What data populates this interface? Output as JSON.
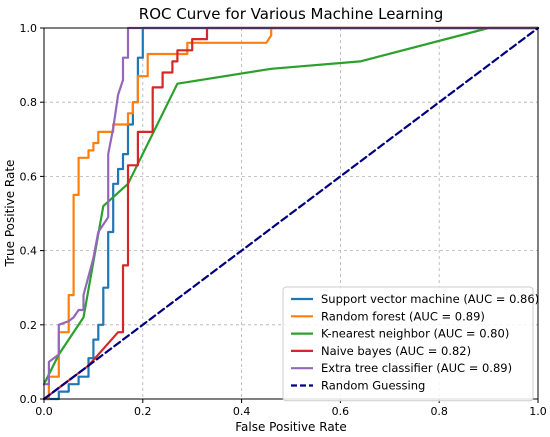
{
  "chart_data": {
    "type": "line",
    "title": "ROC Curve for Various Machine Learning",
    "xlabel": "False Positive Rate",
    "ylabel": "True Positive Rate",
    "xlim": [
      0.0,
      1.0
    ],
    "ylim": [
      0.0,
      1.0
    ],
    "xticks": [
      "0.0",
      "0.2",
      "0.4",
      "0.6",
      "0.8",
      "1.0"
    ],
    "yticks": [
      "0.0",
      "0.2",
      "0.4",
      "0.6",
      "0.8",
      "1.0"
    ],
    "grid": true,
    "legend_position": "lower-right",
    "series": [
      {
        "name": "Support vector machine (AUC = 0.86)",
        "color": "#1f77b4",
        "dashed": false,
        "points": [
          [
            0,
            0
          ],
          [
            0.03,
            0
          ],
          [
            0.03,
            0.02
          ],
          [
            0.05,
            0.02
          ],
          [
            0.05,
            0.04
          ],
          [
            0.07,
            0.04
          ],
          [
            0.07,
            0.06
          ],
          [
            0.09,
            0.06
          ],
          [
            0.09,
            0.11
          ],
          [
            0.1,
            0.11
          ],
          [
            0.1,
            0.16
          ],
          [
            0.11,
            0.16
          ],
          [
            0.11,
            0.2
          ],
          [
            0.12,
            0.2
          ],
          [
            0.12,
            0.3
          ],
          [
            0.13,
            0.3
          ],
          [
            0.13,
            0.45
          ],
          [
            0.14,
            0.45
          ],
          [
            0.14,
            0.58
          ],
          [
            0.15,
            0.58
          ],
          [
            0.15,
            0.62
          ],
          [
            0.16,
            0.62
          ],
          [
            0.16,
            0.66
          ],
          [
            0.17,
            0.66
          ],
          [
            0.17,
            0.74
          ],
          [
            0.18,
            0.74
          ],
          [
            0.18,
            0.8
          ],
          [
            0.19,
            0.8
          ],
          [
            0.19,
            0.92
          ],
          [
            0.2,
            0.92
          ],
          [
            0.2,
            1.0
          ],
          [
            1.0,
            1.0
          ]
        ]
      },
      {
        "name": "Random forest (AUC = 0.89)",
        "color": "#ff7f0e",
        "dashed": false,
        "points": [
          [
            0,
            0
          ],
          [
            0.01,
            0
          ],
          [
            0.01,
            0.06
          ],
          [
            0.03,
            0.06
          ],
          [
            0.03,
            0.18
          ],
          [
            0.05,
            0.18
          ],
          [
            0.05,
            0.28
          ],
          [
            0.06,
            0.28
          ],
          [
            0.06,
            0.55
          ],
          [
            0.07,
            0.55
          ],
          [
            0.07,
            0.65
          ],
          [
            0.09,
            0.65
          ],
          [
            0.09,
            0.67
          ],
          [
            0.1,
            0.67
          ],
          [
            0.1,
            0.69
          ],
          [
            0.11,
            0.69
          ],
          [
            0.11,
            0.72
          ],
          [
            0.14,
            0.72
          ],
          [
            0.14,
            0.74
          ],
          [
            0.17,
            0.74
          ],
          [
            0.17,
            0.77
          ],
          [
            0.18,
            0.77
          ],
          [
            0.18,
            0.8
          ],
          [
            0.19,
            0.8
          ],
          [
            0.19,
            0.87
          ],
          [
            0.21,
            0.87
          ],
          [
            0.21,
            0.93
          ],
          [
            0.29,
            0.93
          ],
          [
            0.29,
            0.96
          ],
          [
            0.45,
            0.96
          ],
          [
            0.46,
            0.98
          ],
          [
            0.46,
            1.0
          ],
          [
            1.0,
            1.0
          ]
        ]
      },
      {
        "name": "K-nearest neighbor (AUC = 0.80)",
        "color": "#2ca02c",
        "dashed": false,
        "points": [
          [
            0,
            0.04
          ],
          [
            0.03,
            0.12
          ],
          [
            0.05,
            0.16
          ],
          [
            0.08,
            0.22
          ],
          [
            0.12,
            0.52
          ],
          [
            0.17,
            0.58
          ],
          [
            0.27,
            0.85
          ],
          [
            0.46,
            0.89
          ],
          [
            0.64,
            0.91
          ],
          [
            0.9,
            1.0
          ],
          [
            1.0,
            1.0
          ]
        ]
      },
      {
        "name": "Naive bayes (AUC = 0.82)",
        "color": "#d62728",
        "dashed": false,
        "points": [
          [
            0,
            0
          ],
          [
            0.09,
            0.09
          ],
          [
            0.15,
            0.18
          ],
          [
            0.16,
            0.18
          ],
          [
            0.16,
            0.36
          ],
          [
            0.17,
            0.36
          ],
          [
            0.17,
            0.63
          ],
          [
            0.19,
            0.63
          ],
          [
            0.19,
            0.72
          ],
          [
            0.22,
            0.72
          ],
          [
            0.22,
            0.84
          ],
          [
            0.24,
            0.84
          ],
          [
            0.24,
            0.88
          ],
          [
            0.26,
            0.88
          ],
          [
            0.26,
            0.91
          ],
          [
            0.27,
            0.91
          ],
          [
            0.27,
            0.94
          ],
          [
            0.3,
            0.94
          ],
          [
            0.3,
            0.97
          ],
          [
            0.33,
            0.97
          ],
          [
            0.33,
            1.0
          ],
          [
            1.0,
            1.0
          ]
        ]
      },
      {
        "name": "Extra tree classifier (AUC = 0.89)",
        "color": "#9467bd",
        "dashed": false,
        "points": [
          [
            0,
            0.04
          ],
          [
            0.01,
            0.04
          ],
          [
            0.01,
            0.1
          ],
          [
            0.03,
            0.12
          ],
          [
            0.03,
            0.2
          ],
          [
            0.05,
            0.21
          ],
          [
            0.06,
            0.22
          ],
          [
            0.07,
            0.24
          ],
          [
            0.08,
            0.24
          ],
          [
            0.08,
            0.28
          ],
          [
            0.1,
            0.38
          ],
          [
            0.11,
            0.45
          ],
          [
            0.13,
            0.49
          ],
          [
            0.13,
            0.66
          ],
          [
            0.14,
            0.73
          ],
          [
            0.15,
            0.82
          ],
          [
            0.16,
            0.86
          ],
          [
            0.16,
            0.92
          ],
          [
            0.17,
            0.92
          ],
          [
            0.17,
            1.0
          ],
          [
            1.0,
            1.0
          ]
        ]
      },
      {
        "name": "Random Guessing",
        "color": "#000080",
        "dashed": true,
        "points": [
          [
            0,
            0
          ],
          [
            1,
            1
          ]
        ]
      }
    ]
  }
}
